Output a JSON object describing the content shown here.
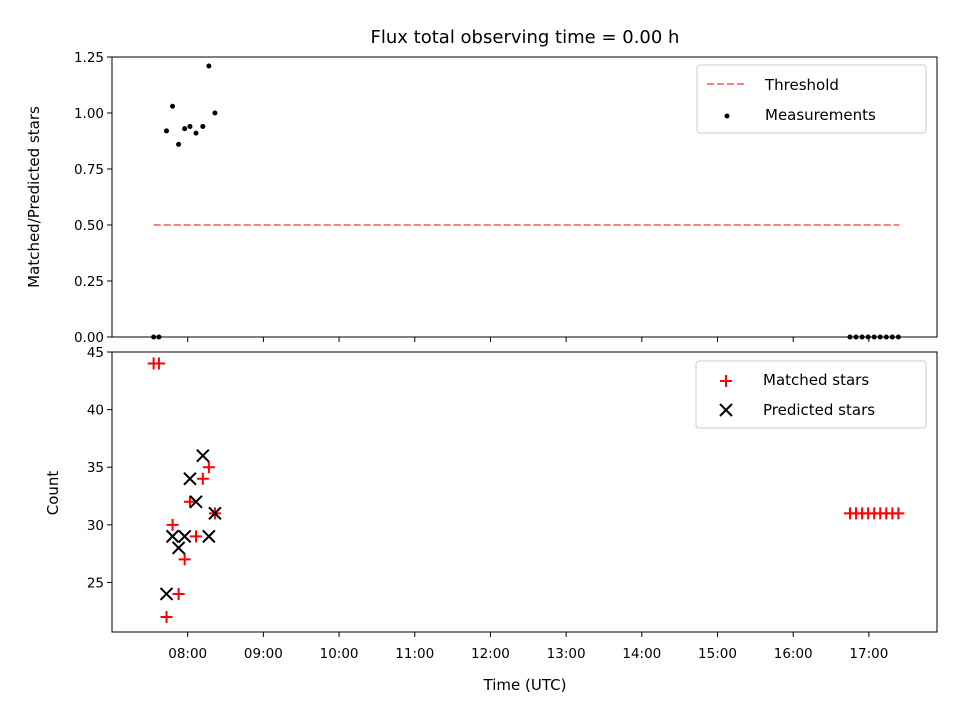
{
  "chart_data": [
    {
      "id": "ratio",
      "type": "scatter",
      "title": "Flux total observing time = 0.00 h",
      "xlabel": "",
      "ylabel": "Matched/Predicted stars",
      "xlim": [
        7.0,
        17.9
      ],
      "ylim": [
        0.0,
        1.25
      ],
      "yticks": [
        0.0,
        0.25,
        0.5,
        0.75,
        1.0,
        1.25
      ],
      "ytick_labels": [
        "0.00",
        "0.25",
        "0.50",
        "0.75",
        "1.00",
        "1.25"
      ],
      "grid": false,
      "legend_position": "top-right",
      "series": [
        {
          "name": "Threshold",
          "kind": "line",
          "style": "dashed",
          "color": "#ff7f7f",
          "x": [
            7.55,
            17.4
          ],
          "y": [
            0.5,
            0.5
          ]
        },
        {
          "name": "Measurements",
          "kind": "points",
          "color": "#000000",
          "x": [
            7.55,
            7.62,
            7.72,
            7.8,
            7.88,
            7.96,
            8.03,
            8.11,
            8.2,
            8.28,
            8.36,
            16.75,
            16.83,
            16.91,
            16.99,
            17.07,
            17.15,
            17.23,
            17.31,
            17.39
          ],
          "y": [
            0.0,
            0.0,
            0.92,
            1.03,
            0.86,
            0.93,
            0.94,
            0.91,
            0.94,
            1.21,
            1.0,
            0.0,
            0.0,
            0.0,
            0.0,
            0.0,
            0.0,
            0.0,
            0.0,
            0.0
          ]
        }
      ]
    },
    {
      "id": "counts",
      "type": "scatter",
      "xlabel": "Time (UTC)",
      "ylabel": "Count",
      "xlim": [
        7.0,
        17.9
      ],
      "ylim": [
        20.7,
        45.0
      ],
      "xticks": [
        8,
        9,
        10,
        11,
        12,
        13,
        14,
        15,
        16,
        17
      ],
      "xtick_labels": [
        "08:00",
        "09:00",
        "10:00",
        "11:00",
        "12:00",
        "13:00",
        "14:00",
        "15:00",
        "16:00",
        "17:00"
      ],
      "yticks": [
        25,
        30,
        35,
        40,
        45
      ],
      "ytick_labels": [
        "25",
        "30",
        "35",
        "40",
        "45"
      ],
      "grid": false,
      "legend_position": "top-right",
      "series": [
        {
          "name": "Matched stars",
          "marker": "plus",
          "color": "#ff0000",
          "x": [
            7.55,
            7.62,
            7.72,
            7.8,
            7.88,
            7.96,
            8.03,
            8.11,
            8.2,
            8.28,
            8.36,
            16.75,
            16.83,
            16.91,
            16.99,
            17.07,
            17.15,
            17.23,
            17.31,
            17.39
          ],
          "y": [
            44,
            44,
            22,
            30,
            24,
            27,
            32,
            29,
            34,
            35,
            31,
            31,
            31,
            31,
            31,
            31,
            31,
            31,
            31,
            31
          ]
        },
        {
          "name": "Predicted stars",
          "marker": "x",
          "color": "#000000",
          "x": [
            7.72,
            7.8,
            7.88,
            7.96,
            8.03,
            8.11,
            8.2,
            8.28,
            8.36
          ],
          "y": [
            24,
            29,
            28,
            29,
            34,
            32,
            36,
            29,
            31
          ]
        }
      ]
    }
  ]
}
